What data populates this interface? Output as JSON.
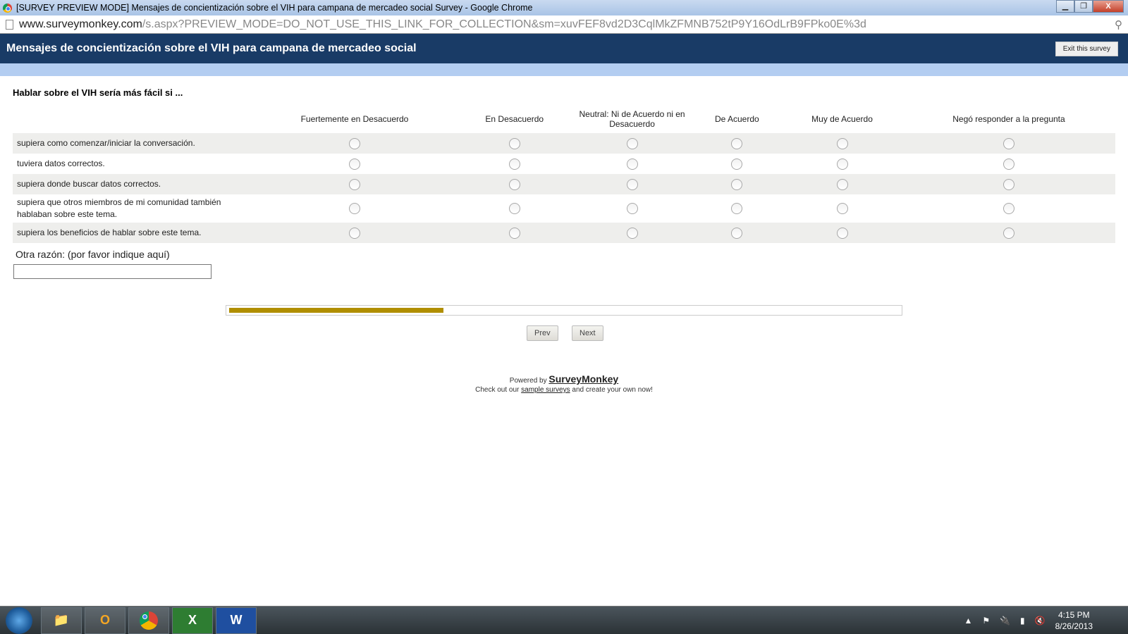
{
  "window": {
    "title": "[SURVEY PREVIEW MODE] Mensajes de concientización sobre el VIH para campana de mercadeo social Survey - Google Chrome",
    "min": "▁",
    "max": "❐",
    "close": "X"
  },
  "address": {
    "host": "www.surveymonkey.com",
    "path": "/s.aspx?PREVIEW_MODE=DO_NOT_USE_THIS_LINK_FOR_COLLECTION&sm=xuvFEF8vd2D3CqlMkZFMNB752tP9Y16OdLrB9FPko0E%3d"
  },
  "header": {
    "title": "Mensajes de concientización sobre el VIH para campana de mercadeo social",
    "exit": "Exit this survey"
  },
  "question": {
    "title": "Hablar sobre el VIH sería más fácil si ...",
    "columns": [
      "Fuertemente en Desacuerdo",
      "En Desacuerdo",
      "Neutral: Ni de Acuerdo ni en Desacuerdo",
      "De Acuerdo",
      "Muy de Acuerdo",
      "Negó responder a la pregunta"
    ],
    "rows": [
      "supiera como comenzar/iniciar la conversación.",
      "tuviera datos correctos.",
      "supiera donde buscar datos correctos.",
      "supiera que otros miembros de mi comunidad también hablaban sobre este tema.",
      "supiera los beneficios de hablar sobre este tema."
    ],
    "other_label": "Otra razón: (por favor indique aquí)",
    "other_value": ""
  },
  "progress": {
    "percent": 32,
    "color": "#b08e00"
  },
  "nav": {
    "prev": "Prev",
    "next": "Next"
  },
  "footer": {
    "powered": "Powered by ",
    "brand": "SurveyMonkey",
    "check": "Check out our ",
    "link": "sample surveys",
    "rest": " and create your own now!"
  },
  "taskbar": {
    "apps": [
      "explorer",
      "outlook",
      "chrome",
      "excel",
      "word"
    ],
    "word": "W",
    "excel": "X",
    "outlook": "O",
    "time": "4:15 PM",
    "date": "8/26/2013"
  }
}
